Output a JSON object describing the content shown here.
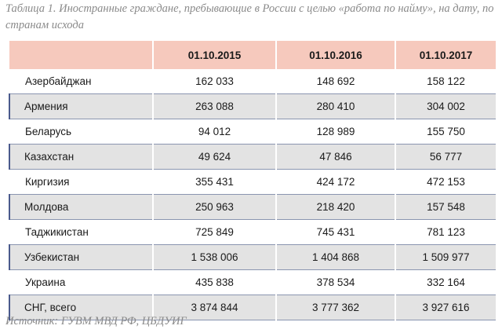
{
  "caption": "Таблица 1. Иностранные граждане, пребывающие в России с целью «работа по найму», на дату, по странам исхода",
  "table": {
    "headers": [
      "",
      "01.10.2015",
      "01.10.2016",
      "01.10.2017"
    ],
    "rows": [
      {
        "country": "Азербайджан",
        "v2015": "162 033",
        "v2016": "148 692",
        "v2017": "158 122"
      },
      {
        "country": "Армения",
        "v2015": "263 088",
        "v2016": "280 410",
        "v2017": "304 002"
      },
      {
        "country": "Беларусь",
        "v2015": "94 012",
        "v2016": "128 989",
        "v2017": "155 750"
      },
      {
        "country": "Казахстан",
        "v2015": "49 624",
        "v2016": "47 846",
        "v2017": "56 777"
      },
      {
        "country": "Киргизия",
        "v2015": "355 431",
        "v2016": "424 172",
        "v2017": "472 153"
      },
      {
        "country": "Молдова",
        "v2015": "250 963",
        "v2016": "218 420",
        "v2017": "157 548"
      },
      {
        "country": "Таджикистан",
        "v2015": "725 849",
        "v2016": "745 431",
        "v2017": "781 123"
      },
      {
        "country": "Узбекистан",
        "v2015": "1 538 006",
        "v2016": "1 404 868",
        "v2017": "1 509 977"
      },
      {
        "country": "Украина",
        "v2015": "435 838",
        "v2016": "378 534",
        "v2017": "332 164"
      },
      {
        "country": "СНГ, всего",
        "v2015": "3 874 844",
        "v2016": "3 777 362",
        "v2017": "3 927 616"
      }
    ]
  },
  "source": "Источник: ГУВМ МВД РФ, ЦБДУИГ",
  "colors": {
    "header_bg": "#f6c9bd",
    "stripe_bg": "#e3e3e3",
    "accent": "#4a5a8c",
    "caption_text": "#8a8a8a"
  }
}
